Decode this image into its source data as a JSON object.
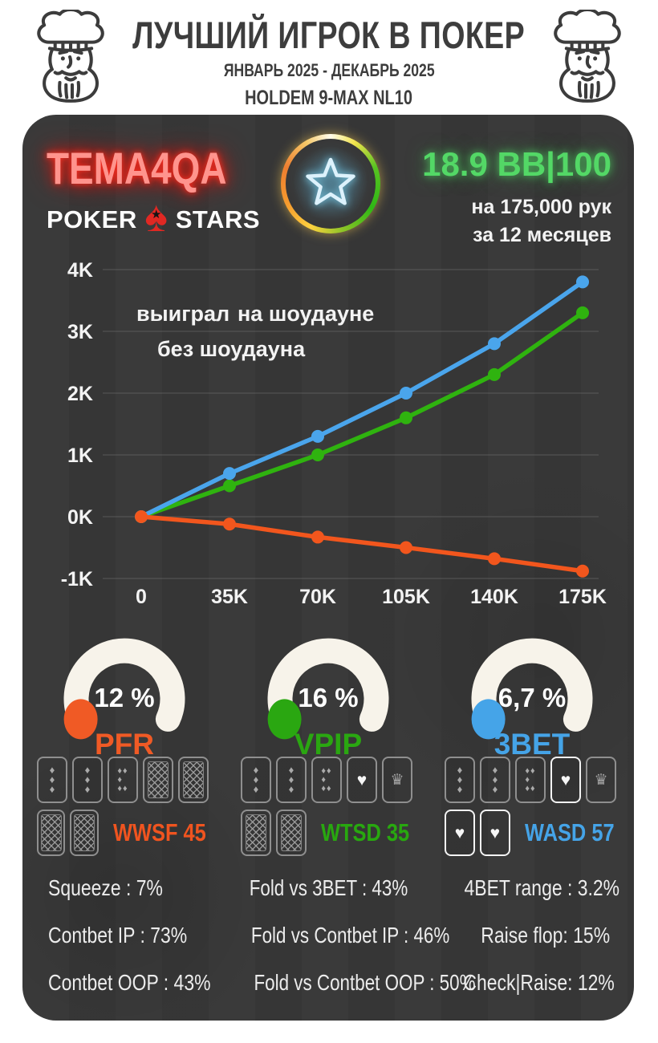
{
  "header": {
    "title": "ЛУЧШИЙ ИГРОК В ПОКЕР",
    "subtitle": "ЯНВАРЬ 2025 - ДЕКАБРЬ 2025",
    "format_line": "HOLDEM 9-MAX NL10"
  },
  "card": {
    "player": "TEMA4QA",
    "logo": {
      "part1": "POKER",
      "part2": "STARS"
    },
    "winrate": {
      "value": "18.9 BB|100",
      "hands_line": "на 175,000 рук",
      "period_line": "за 12 месяцев",
      "color": "#53d866"
    }
  },
  "chart_data": {
    "type": "line",
    "x": [
      0,
      35000,
      70000,
      105000,
      140000,
      175000
    ],
    "xtick_labels": [
      "0",
      "35K",
      "70K",
      "105K",
      "140K",
      "175K"
    ],
    "ytick_labels": [
      "4K",
      "3K",
      "2K",
      "1K",
      "0K",
      "-1K"
    ],
    "ytick_values": [
      4,
      3,
      2,
      1,
      0,
      -1
    ],
    "ylim": [
      -1.4,
      4.3
    ],
    "grid": true,
    "legend_position": "top-left",
    "series": [
      {
        "name": "выиграл",
        "color": "#2fb30f",
        "values": [
          0,
          0.5,
          1.0,
          1.6,
          2.3,
          3.3
        ]
      },
      {
        "name": "на шоудауне",
        "color": "#4aa5ec",
        "values": [
          0,
          0.7,
          1.3,
          2.0,
          2.8,
          3.8
        ]
      },
      {
        "name": "без шоудауна",
        "color": "#f2561d",
        "values": [
          0,
          -0.12,
          -0.33,
          -0.5,
          -0.68,
          -0.88
        ]
      }
    ]
  },
  "gauges": [
    {
      "value": "12 %",
      "label": "PFR",
      "color": "#f05a25"
    },
    {
      "value": "16 %",
      "label": "VPIP",
      "color": "#2aa711"
    },
    {
      "value": "6,7 %",
      "label": "3BET",
      "color": "#45a4e8"
    }
  ],
  "board_stats": [
    {
      "label": "WWSF 45",
      "color": "#f0541f",
      "row1": [
        "d3",
        "d3",
        "d5",
        "back",
        "back"
      ],
      "row2": [
        "back",
        "back"
      ]
    },
    {
      "label": "WTSD 35",
      "color": "#28a80f",
      "row1": [
        "d3",
        "d3",
        "d5",
        "heart",
        "crown"
      ],
      "row2": [
        "back",
        "back"
      ]
    },
    {
      "label": "WASD 57",
      "color": "#45a4e8",
      "row1": [
        "d3",
        "d3",
        "d5",
        "heart-bright",
        "crown"
      ],
      "row2": [
        "heart-bright",
        "heart-bright"
      ]
    }
  ],
  "detail_stats": {
    "col1": [
      "Squeeze : 7%",
      "Contbet IP : 73%",
      "Contbet OOP : 43%"
    ],
    "col2": [
      "Fold vs 3BET : 43%",
      "Fold vs Contbet IP : 46%",
      "Fold vs Contbet OOP : 50%"
    ],
    "col3": [
      "4BET range : 3.2%",
      "Raise flop: 15%",
      "Check|Raise: 12%"
    ]
  },
  "icons": {
    "diamond": "♦",
    "heart": "♥",
    "crown": "♛",
    "spade": "♠",
    "star": "★"
  },
  "colors": {
    "card_bg": "#383838",
    "grid_line": "#646464",
    "axis_text": "#f3f3f3",
    "gauge_arc": "#f7f3ea",
    "neon_name": "#ff948d"
  }
}
